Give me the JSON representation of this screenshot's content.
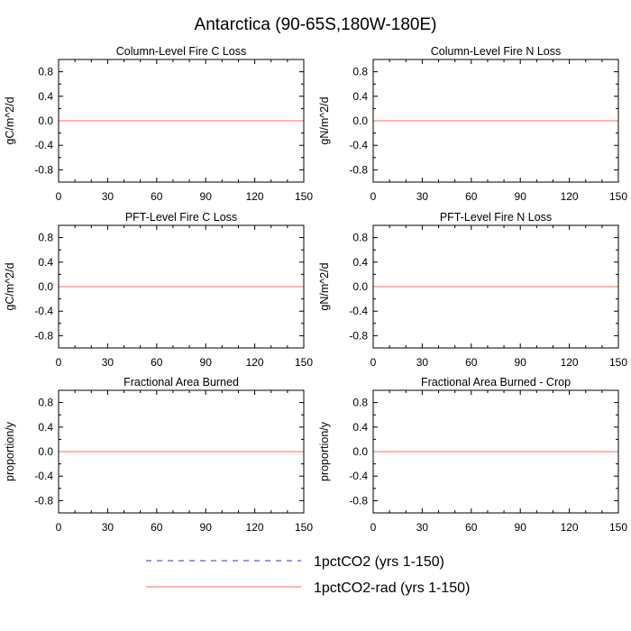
{
  "figure": {
    "title": "Antarctica (90-65S,180W-180E)"
  },
  "legend": {
    "placement": "bottom",
    "items": [
      {
        "label": "1pctCO2 (yrs 1-150)",
        "color": "#3333cc",
        "dash": "dashed"
      },
      {
        "label": "1pctCO2-rad (yrs 1-150)",
        "color": "#ff6a6a",
        "dash": "solid"
      }
    ]
  },
  "chart_data": [
    {
      "type": "line",
      "title": "Column-Level Fire C Loss",
      "xlabel": "",
      "ylabel": "gC/m^2/d",
      "xlim": [
        0,
        150
      ],
      "ylim": [
        -1,
        1
      ],
      "xticks": [
        0,
        30,
        60,
        90,
        120,
        150
      ],
      "yticks": [
        -0.8,
        -0.4,
        0.0,
        0.4,
        0.8
      ],
      "ytick_labels": [
        "-0.8",
        "-0.4",
        "0.0",
        "0.4",
        "0.8"
      ],
      "grid": false,
      "series": [
        {
          "name": "1pctCO2 (yrs 1-150)",
          "x": [
            0,
            150
          ],
          "y": [
            0,
            0
          ]
        },
        {
          "name": "1pctCO2-rad (yrs 1-150)",
          "x": [
            0,
            150
          ],
          "y": [
            0,
            0
          ]
        }
      ]
    },
    {
      "type": "line",
      "title": "Column-Level Fire N Loss",
      "xlabel": "",
      "ylabel": "gN/m^2/d",
      "xlim": [
        0,
        150
      ],
      "ylim": [
        -1,
        1
      ],
      "xticks": [
        0,
        30,
        60,
        90,
        120,
        150
      ],
      "yticks": [
        -0.8,
        -0.4,
        0.0,
        0.4,
        0.8
      ],
      "ytick_labels": [
        "-0.8",
        "-0.4",
        "0.0",
        "0.4",
        "0.8"
      ],
      "grid": false,
      "series": [
        {
          "name": "1pctCO2 (yrs 1-150)",
          "x": [
            0,
            150
          ],
          "y": [
            0,
            0
          ]
        },
        {
          "name": "1pctCO2-rad (yrs 1-150)",
          "x": [
            0,
            150
          ],
          "y": [
            0,
            0
          ]
        }
      ]
    },
    {
      "type": "line",
      "title": "PFT-Level Fire C Loss",
      "xlabel": "",
      "ylabel": "gC/m^2/d",
      "xlim": [
        0,
        150
      ],
      "ylim": [
        -1,
        1
      ],
      "xticks": [
        0,
        30,
        60,
        90,
        120,
        150
      ],
      "yticks": [
        -0.8,
        -0.4,
        0.0,
        0.4,
        0.8
      ],
      "ytick_labels": [
        "-0.8",
        "-0.4",
        "0.0",
        "0.4",
        "0.8"
      ],
      "grid": false,
      "series": [
        {
          "name": "1pctCO2 (yrs 1-150)",
          "x": [
            0,
            150
          ],
          "y": [
            0,
            0
          ]
        },
        {
          "name": "1pctCO2-rad (yrs 1-150)",
          "x": [
            0,
            150
          ],
          "y": [
            0,
            0
          ]
        }
      ]
    },
    {
      "type": "line",
      "title": "PFT-Level Fire N Loss",
      "xlabel": "",
      "ylabel": "gN/m^2/d",
      "xlim": [
        0,
        150
      ],
      "ylim": [
        -1,
        1
      ],
      "xticks": [
        0,
        30,
        60,
        90,
        120,
        150
      ],
      "yticks": [
        -0.8,
        -0.4,
        0.0,
        0.4,
        0.8
      ],
      "ytick_labels": [
        "-0.8",
        "-0.4",
        "0.0",
        "0.4",
        "0.8"
      ],
      "grid": false,
      "series": [
        {
          "name": "1pctCO2 (yrs 1-150)",
          "x": [
            0,
            150
          ],
          "y": [
            0,
            0
          ]
        },
        {
          "name": "1pctCO2-rad (yrs 1-150)",
          "x": [
            0,
            150
          ],
          "y": [
            0,
            0
          ]
        }
      ]
    },
    {
      "type": "line",
      "title": "Fractional Area Burned",
      "xlabel": "",
      "ylabel": "proportion/y",
      "xlim": [
        0,
        150
      ],
      "ylim": [
        -1,
        1
      ],
      "xticks": [
        0,
        30,
        60,
        90,
        120,
        150
      ],
      "yticks": [
        -0.8,
        -0.4,
        0.0,
        0.4,
        0.8
      ],
      "ytick_labels": [
        "-0.8",
        "-0.4",
        "0.0",
        "0.4",
        "0.8"
      ],
      "grid": false,
      "series": [
        {
          "name": "1pctCO2 (yrs 1-150)",
          "x": [
            0,
            150
          ],
          "y": [
            0,
            0
          ]
        },
        {
          "name": "1pctCO2-rad (yrs 1-150)",
          "x": [
            0,
            150
          ],
          "y": [
            0,
            0
          ]
        }
      ]
    },
    {
      "type": "line",
      "title": "Fractional Area Burned - Crop",
      "xlabel": "",
      "ylabel": "proportion/y",
      "xlim": [
        0,
        150
      ],
      "ylim": [
        -1,
        1
      ],
      "xticks": [
        0,
        30,
        60,
        90,
        120,
        150
      ],
      "yticks": [
        -0.8,
        -0.4,
        0.0,
        0.4,
        0.8
      ],
      "ytick_labels": [
        "-0.8",
        "-0.4",
        "0.0",
        "0.4",
        "0.8"
      ],
      "grid": false,
      "series": [
        {
          "name": "1pctCO2 (yrs 1-150)",
          "x": [
            0,
            150
          ],
          "y": [
            0,
            0
          ]
        },
        {
          "name": "1pctCO2-rad (yrs 1-150)",
          "x": [
            0,
            150
          ],
          "y": [
            0,
            0
          ]
        }
      ]
    }
  ]
}
